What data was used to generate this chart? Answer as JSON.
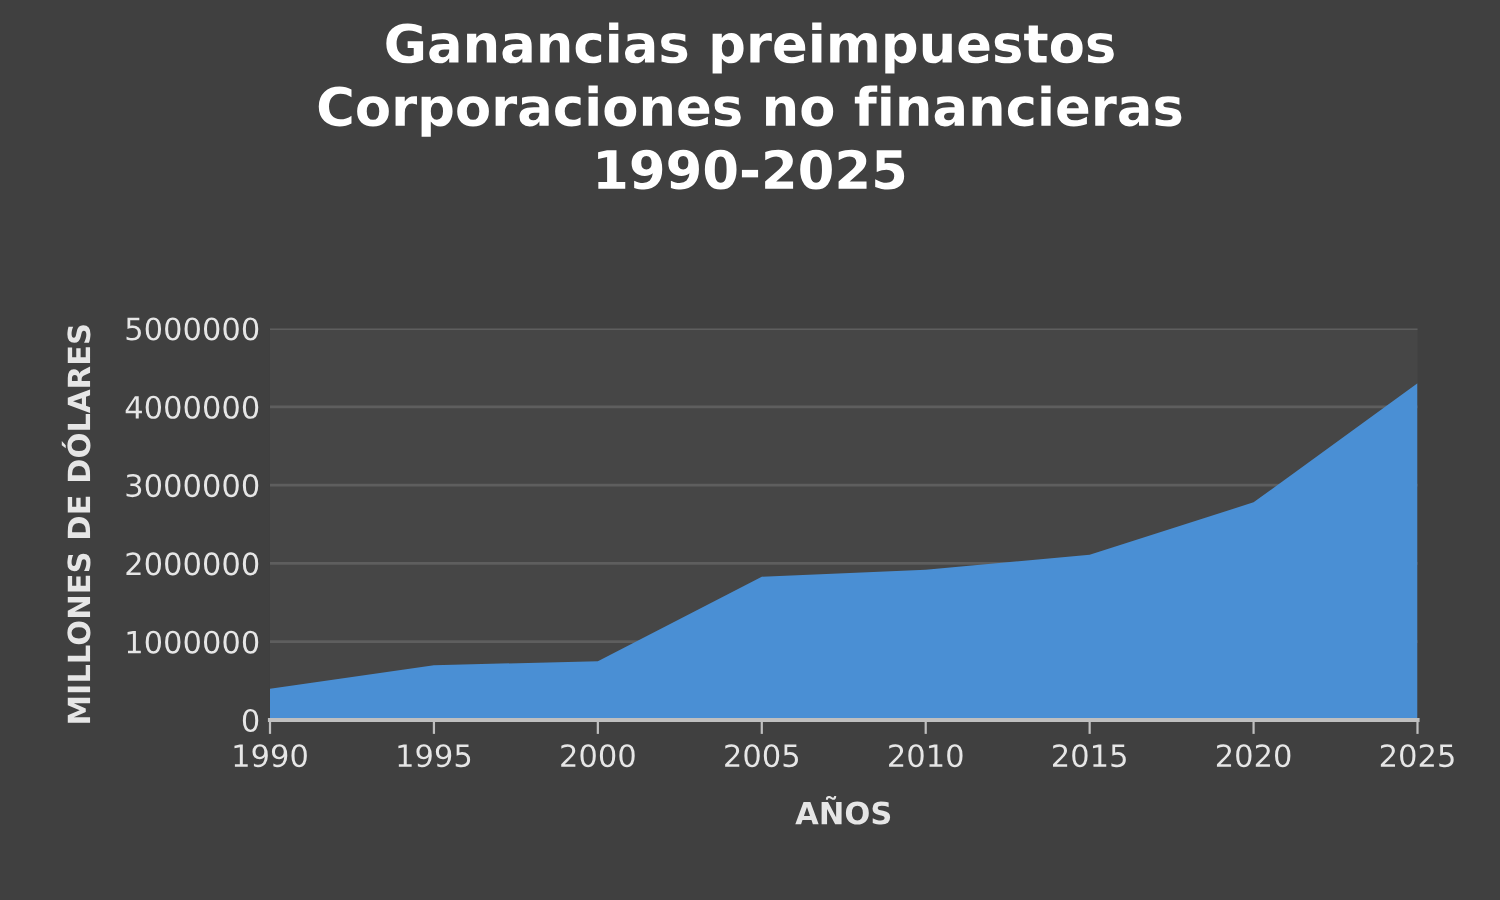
{
  "chart_data": {
    "type": "area",
    "title": "Ganancias preimpuestos\nCorporaciones no financieras\n1990-2025",
    "xlabel": "AÑOS",
    "ylabel": "MILLONES DE DÓLARES",
    "x": [
      1990,
      1995,
      2000,
      2005,
      2010,
      2015,
      2020,
      2025
    ],
    "series": [
      {
        "color": "#4a8fd4",
        "values": [
          400000,
          700000,
          750000,
          1830000,
          1920000,
          2110000,
          2780000,
          4300000
        ]
      }
    ],
    "xlim": [
      1990,
      2025
    ],
    "xticks": [
      1990,
      1995,
      2000,
      2005,
      2010,
      2015,
      2020,
      2025
    ],
    "ylim": [
      0,
      5000000
    ],
    "yticks": [
      0,
      1000000,
      2000000,
      3000000,
      4000000,
      5000000
    ],
    "grid": "y",
    "legend": false
  }
}
